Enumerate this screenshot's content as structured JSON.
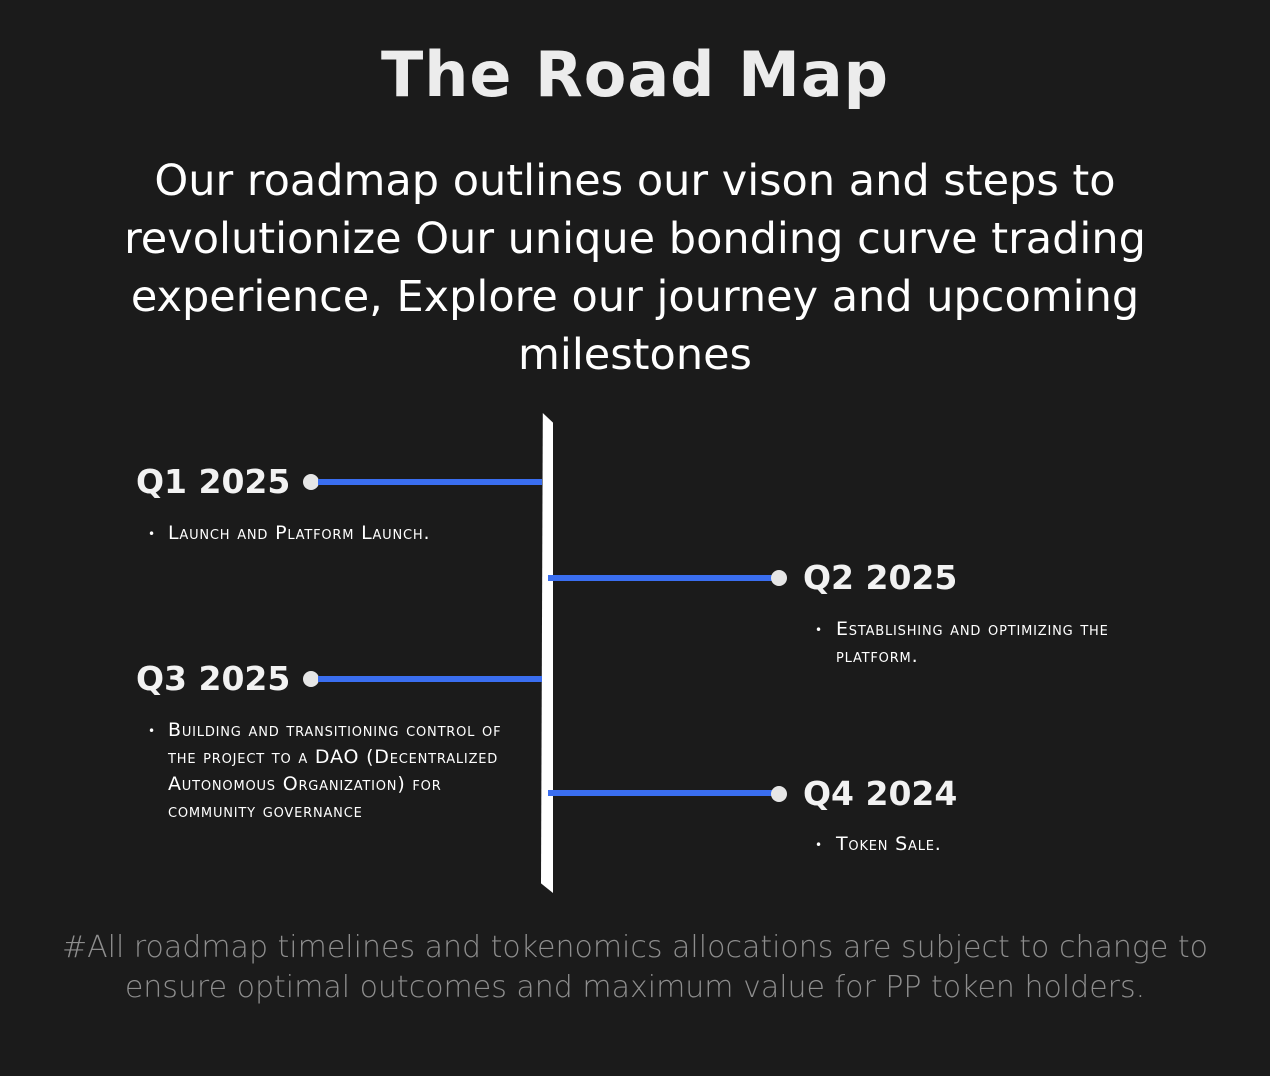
{
  "title": "The Road Map",
  "intro": "Our roadmap outlines our vison and steps to revolutionize Our unique bonding curve trading experience, Explore our journey and upcoming milestones",
  "colors": {
    "background": "#1b1b1b",
    "connector": "#3a6ef0",
    "axis": "#ffffff",
    "footnote": "#8e8e8e"
  },
  "milestones": [
    {
      "quarter": "Q1 2025",
      "description": "Launch and Platform Launch."
    },
    {
      "quarter": "Q2 2025",
      "description": "Establishing and optimizing the platform."
    },
    {
      "quarter": "Q3 2025",
      "description": "Building and transitioning control of the project to a DAO (Decentralized Autonomous Organization) for community governance"
    },
    {
      "quarter": "Q4 2024",
      "description": "Token Sale."
    }
  ],
  "footnote": "#All roadmap timelines and tokenomics allocations are subject to change to ensure optimal outcomes and maximum value for PP token holders."
}
